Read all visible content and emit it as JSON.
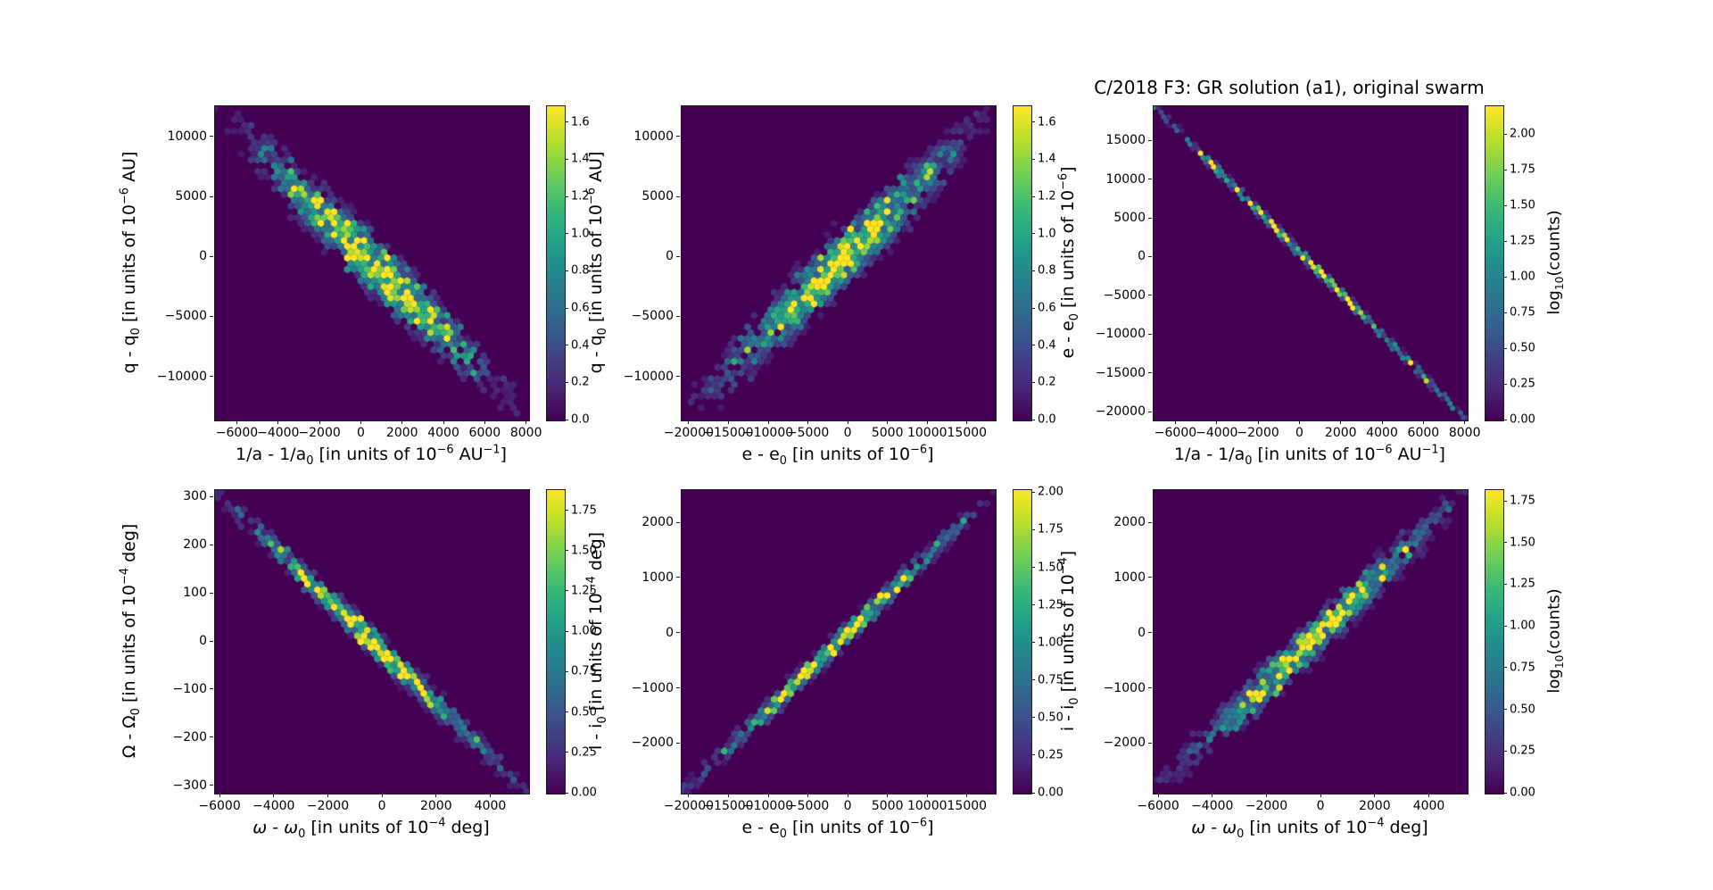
{
  "figure": {
    "title": "C/2018 F3: GR solution (a1), original swarm",
    "colormap": "viridis",
    "plot_background": "#440154",
    "background": "#ffffff",
    "text_color": "#000000"
  },
  "chart_data": [
    {
      "id": "top-left",
      "type": "hexbin",
      "xlabel": "1/a - 1/a_{0} [in units of 10^{−6} AU^{−1}]",
      "ylabel": "q - q_{0} [in units of 10^{−6} AU]",
      "xlim": [
        -7100,
        8100
      ],
      "ylim": [
        -13600,
        12600
      ],
      "xticks": [
        -6000,
        -4000,
        -2000,
        0,
        2000,
        4000,
        6000,
        8000
      ],
      "xtick_labels": [
        "−6000",
        "−4000",
        "−2000",
        "0",
        "2000",
        "4000",
        "6000",
        "8000"
      ],
      "yticks": [
        10000,
        5000,
        0,
        -5000,
        -10000
      ],
      "ytick_labels": [
        "10000",
        "5000",
        "0",
        "−5000",
        "−10000"
      ],
      "colorbar": {
        "vmax": 1.69,
        "ticks": [
          0.0,
          0.2,
          0.4,
          0.6,
          0.8,
          1.0,
          1.2,
          1.4,
          1.6
        ],
        "tick_labels": [
          "0.0",
          "0.2",
          "0.4",
          "0.6",
          "0.8",
          "1.0",
          "1.2",
          "1.4",
          "1.6"
        ],
        "label": ""
      },
      "distribution": {
        "correlation": "negative",
        "extends": "corner-to-corner",
        "band_sigma_frac": 0.036,
        "length_sigma_frac": 0.2,
        "peak_log10_counts": 1.72,
        "hex_radius_px": 4.3,
        "seed": 11
      }
    },
    {
      "id": "top-middle",
      "type": "hexbin",
      "xlabel": "e - e_{0} [in units of 10^{−6}]",
      "ylabel": "q - q_{0} [in units of 10^{−6} AU]",
      "xlim": [
        -21000,
        18500
      ],
      "ylim": [
        -13600,
        12600
      ],
      "xticks": [
        -20000,
        -15000,
        -10000,
        -5000,
        0,
        5000,
        10000,
        15000
      ],
      "xtick_labels": [
        "−20000",
        "−15000",
        "−10000",
        "−5000",
        "0",
        "5000",
        "10000",
        "15000"
      ],
      "yticks": [
        10000,
        5000,
        0,
        -5000,
        -10000
      ],
      "ytick_labels": [
        "10000",
        "5000",
        "0",
        "−5000",
        "−10000"
      ],
      "colorbar": {
        "vmax": 1.69,
        "ticks": [
          0.0,
          0.2,
          0.4,
          0.6,
          0.8,
          1.0,
          1.2,
          1.4,
          1.6
        ],
        "tick_labels": [
          "0.0",
          "0.2",
          "0.4",
          "0.6",
          "0.8",
          "1.0",
          "1.2",
          "1.4",
          "1.6"
        ],
        "label": ""
      },
      "distribution": {
        "correlation": "positive",
        "extends": "corner-to-corner",
        "band_sigma_frac": 0.036,
        "length_sigma_frac": 0.2,
        "peak_log10_counts": 1.72,
        "hex_radius_px": 4.3,
        "seed": 22
      }
    },
    {
      "id": "top-right",
      "type": "hexbin",
      "xlabel": "1/a - 1/a_{0} [in units of 10^{−6} AU^{−1}]",
      "ylabel": "e - e_{0} [in units of 10^{−6}]",
      "xlim": [
        -7100,
        8100
      ],
      "ylim": [
        -21000,
        19500
      ],
      "xticks": [
        -6000,
        -4000,
        -2000,
        0,
        2000,
        4000,
        6000,
        8000
      ],
      "xtick_labels": [
        "−6000",
        "−4000",
        "−2000",
        "0",
        "2000",
        "4000",
        "6000",
        "8000"
      ],
      "yticks": [
        15000,
        10000,
        5000,
        0,
        -5000,
        -10000,
        -15000,
        -20000
      ],
      "ytick_labels": [
        "15000",
        "10000",
        "5000",
        "0",
        "−5000",
        "−10000",
        "−15000",
        "−20000"
      ],
      "colorbar": {
        "vmax": 2.2,
        "ticks": [
          0.0,
          0.25,
          0.5,
          0.75,
          1.0,
          1.25,
          1.5,
          1.75,
          2.0
        ],
        "tick_labels": [
          "0.00",
          "0.25",
          "0.50",
          "0.75",
          "1.00",
          "1.25",
          "1.50",
          "1.75",
          "2.00"
        ],
        "label": "log_{10}(counts)"
      },
      "distribution": {
        "correlation": "negative",
        "extends": "corner-to-corner",
        "band_sigma_frac": 0.0065,
        "length_sigma_frac": 0.3,
        "peak_log10_counts": 2.2,
        "hex_radius_px": 3.4,
        "seed": 33
      }
    },
    {
      "id": "bottom-left",
      "type": "hexbin",
      "xlabel": "$ω$ - $ω$_{0} [in units of 10^{−4} deg]",
      "ylabel": "Ω - Ω_{0} [in units of 10^{−4} deg]",
      "xlim": [
        -6200,
        5400
      ],
      "ylim": [
        -315,
        315
      ],
      "xticks": [
        -6000,
        -4000,
        -2000,
        0,
        2000,
        4000
      ],
      "xtick_labels": [
        "−6000",
        "−4000",
        "−2000",
        "0",
        "2000",
        "4000"
      ],
      "yticks": [
        300,
        200,
        100,
        0,
        -100,
        -200,
        -300
      ],
      "ytick_labels": [
        "300",
        "200",
        "100",
        "0",
        "−100",
        "−200",
        "−300"
      ],
      "colorbar": {
        "vmax": 1.88,
        "ticks": [
          0.0,
          0.25,
          0.5,
          0.75,
          1.0,
          1.25,
          1.5,
          1.75
        ],
        "tick_labels": [
          "0.00",
          "0.25",
          "0.50",
          "0.75",
          "1.00",
          "1.25",
          "1.50",
          "1.75"
        ],
        "label": ""
      },
      "distribution": {
        "correlation": "negative",
        "extends": "corner-to-corner",
        "band_sigma_frac": 0.018,
        "length_sigma_frac": 0.22,
        "peak_log10_counts": 1.92,
        "hex_radius_px": 4.3,
        "seed": 44
      }
    },
    {
      "id": "bottom-middle",
      "type": "hexbin",
      "xlabel": "e - e_{0} [in units of 10^{−6}]",
      "ylabel": "i - i_{0} [in units of 10^{−4} deg]",
      "xlim": [
        -21000,
        18500
      ],
      "ylim": [
        -2900,
        2600
      ],
      "xticks": [
        -20000,
        -15000,
        -10000,
        -5000,
        0,
        5000,
        10000,
        15000
      ],
      "xtick_labels": [
        "−20000",
        "−15000",
        "−10000",
        "−5000",
        "0",
        "5000",
        "10000",
        "15000"
      ],
      "yticks": [
        2000,
        1000,
        0,
        -1000,
        -2000
      ],
      "ytick_labels": [
        "2000",
        "1000",
        "0",
        "−1000",
        "−2000"
      ],
      "colorbar": {
        "vmax": 2.02,
        "ticks": [
          0.0,
          0.25,
          0.5,
          0.75,
          1.0,
          1.25,
          1.5,
          1.75,
          2.0
        ],
        "tick_labels": [
          "0.00",
          "0.25",
          "0.50",
          "0.75",
          "1.00",
          "1.25",
          "1.50",
          "1.75",
          "2.00"
        ],
        "label": ""
      },
      "distribution": {
        "correlation": "positive",
        "extends": "corner-to-corner",
        "band_sigma_frac": 0.014,
        "length_sigma_frac": 0.24,
        "peak_log10_counts": 2.05,
        "hex_radius_px": 4.3,
        "seed": 55
      }
    },
    {
      "id": "bottom-right",
      "type": "hexbin",
      "xlabel": "$ω$ - $ω$_{0} [in units of 10^{−4} deg]",
      "ylabel": "i - i_{0} [in units of 10^{−4}]",
      "xlim": [
        -6200,
        5400
      ],
      "ylim": [
        -2900,
        2600
      ],
      "xticks": [
        -6000,
        -4000,
        -2000,
        0,
        2000,
        4000
      ],
      "xtick_labels": [
        "−6000",
        "−4000",
        "−2000",
        "0",
        "2000",
        "4000"
      ],
      "yticks": [
        2000,
        1000,
        0,
        -1000,
        -2000
      ],
      "ytick_labels": [
        "2000",
        "1000",
        "0",
        "−1000",
        "−2000"
      ],
      "colorbar": {
        "vmax": 1.82,
        "ticks": [
          0.0,
          0.25,
          0.5,
          0.75,
          1.0,
          1.25,
          1.5,
          1.75
        ],
        "tick_labels": [
          "0.00",
          "0.25",
          "0.50",
          "0.75",
          "1.00",
          "1.25",
          "1.50",
          "1.75"
        ],
        "label": "log_{10}(counts)"
      },
      "distribution": {
        "correlation": "positive",
        "extends": "corner-to-corner",
        "band_sigma_frac": 0.026,
        "length_sigma_frac": 0.22,
        "peak_log10_counts": 1.86,
        "hex_radius_px": 4.3,
        "seed": 66
      }
    }
  ]
}
